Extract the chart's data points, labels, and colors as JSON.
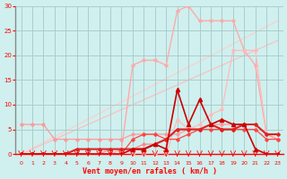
{
  "x": [
    0,
    1,
    2,
    3,
    4,
    5,
    6,
    7,
    8,
    9,
    10,
    11,
    12,
    13,
    14,
    15,
    16,
    17,
    18,
    19,
    20,
    21,
    22,
    23
  ],
  "bg_color": "#cff0ee",
  "grid_color": "#aacccc",
  "xlabel": "Vent moyen/en rafales ( km/h )",
  "xlim": [
    -0.5,
    23.5
  ],
  "ylim": [
    0,
    30
  ],
  "yticks": [
    0,
    5,
    10,
    15,
    20,
    25,
    30
  ],
  "xticks": [
    0,
    1,
    2,
    3,
    4,
    5,
    6,
    7,
    8,
    9,
    10,
    11,
    12,
    13,
    14,
    15,
    16,
    17,
    18,
    19,
    20,
    21,
    22,
    23
  ],
  "diag1": {
    "x": [
      0,
      23
    ],
    "y": [
      0,
      23
    ]
  },
  "diag2": {
    "x": [
      0,
      23
    ],
    "y": [
      0,
      27
    ]
  },
  "curve_peak": [
    0,
    0,
    0,
    0,
    0,
    0,
    0,
    0,
    0,
    1,
    18,
    19,
    19,
    18,
    29,
    30,
    27,
    27,
    27,
    27,
    21,
    18,
    4,
    3
  ],
  "curve_peak_color": "#ffaaaa",
  "curve_peak_lw": 1.0,
  "curve_upper": [
    0,
    0,
    0,
    0,
    0,
    0,
    0,
    0,
    0,
    0,
    0,
    0,
    0,
    0,
    7,
    5,
    6,
    8,
    9,
    21,
    21,
    21,
    4,
    3
  ],
  "curve_upper_color": "#ffbbbb",
  "curve_upper_lw": 0.9,
  "curve_mid": [
    6,
    6,
    6,
    3,
    3,
    3,
    3,
    3,
    3,
    3,
    4,
    4,
    4,
    4,
    4,
    5,
    5,
    6,
    6,
    6,
    6,
    6,
    4,
    3
  ],
  "curve_mid_color": "#ff9999",
  "curve_mid_lw": 0.9,
  "curve_low2": [
    0,
    0,
    0,
    0,
    0,
    0,
    0,
    0,
    1,
    1,
    1,
    2,
    2,
    3,
    5,
    5,
    5,
    6,
    5,
    5,
    6,
    6,
    4,
    4
  ],
  "curve_low2_color": "#ff8888",
  "curve_low2_lw": 0.9,
  "curve_spiky": [
    0,
    0,
    0,
    0,
    0,
    0,
    0,
    0,
    0,
    0,
    1,
    1,
    2,
    1,
    13,
    6,
    11,
    6,
    7,
    6,
    6,
    1,
    0,
    0
  ],
  "curve_spiky_color": "#cc0000",
  "curve_spiky_lw": 1.2,
  "curve_flat": [
    0,
    0,
    0,
    0,
    0,
    0,
    0,
    0,
    0,
    0,
    3,
    4,
    4,
    3,
    3,
    4,
    5,
    5,
    5,
    5,
    5,
    5,
    3,
    3
  ],
  "curve_flat_color": "#ff4444",
  "curve_flat_lw": 0.9,
  "curve_bold": [
    0,
    0,
    0,
    0,
    0,
    1,
    1,
    1,
    1,
    1,
    1,
    1,
    2,
    3,
    5,
    5,
    5,
    6,
    5,
    5,
    6,
    6,
    4,
    4
  ],
  "curve_bold_color": "#dd2222",
  "curve_bold_lw": 1.5
}
